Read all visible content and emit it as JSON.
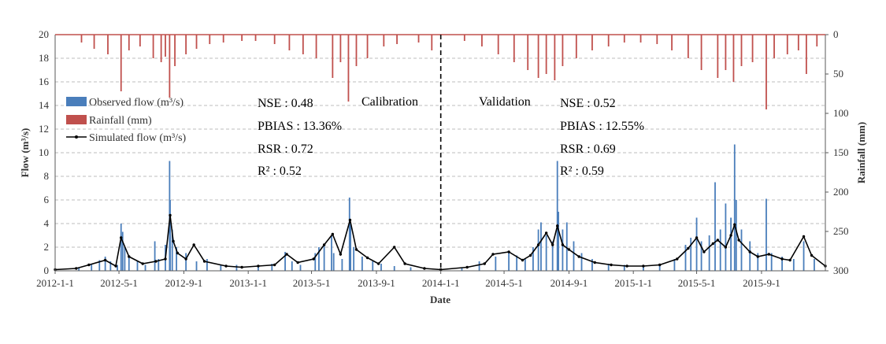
{
  "chart_data": {
    "type": "bar",
    "title": "",
    "xlabel": "Date",
    "ylabel_left": "Flow (m³/s)",
    "ylabel_right": "Rainfall (mm)",
    "ylim_left": [
      0,
      20
    ],
    "ylim_right": [
      0,
      300
    ],
    "right_axis_inverted": true,
    "y_ticks_left": [
      "0",
      "2",
      "4",
      "6",
      "8",
      "10",
      "12",
      "14",
      "16",
      "18",
      "20"
    ],
    "y_ticks_right": [
      "0",
      "50",
      "100",
      "150",
      "200",
      "250",
      "300"
    ],
    "x_ticks": [
      {
        "label": "2012-1-1",
        "date": "2012-01-01"
      },
      {
        "label": "2012-5-1",
        "date": "2012-05-01"
      },
      {
        "label": "2012-9-1",
        "date": "2012-09-01"
      },
      {
        "label": "2013-1-1",
        "date": "2013-01-01"
      },
      {
        "label": "2013-5-1",
        "date": "2013-05-01"
      },
      {
        "label": "2013-9-1",
        "date": "2013-09-01"
      },
      {
        "label": "2014-1-1",
        "date": "2014-01-01"
      },
      {
        "label": "2014-5-1",
        "date": "2014-05-01"
      },
      {
        "label": "2014-9-1",
        "date": "2014-09-01"
      },
      {
        "label": "2015-1-1",
        "date": "2015-01-01"
      },
      {
        "label": "2015-5-1",
        "date": "2015-05-01"
      },
      {
        "label": "2015-9-1",
        "date": "2015-09-01"
      }
    ],
    "x_range": [
      "2012-01-01",
      "2015-12-31"
    ],
    "grid": {
      "horizontal": true,
      "style": "dashed"
    },
    "legend_position": "upper-left",
    "colors": {
      "observed": "#4a7ebb",
      "rainfall": "#c0504d",
      "simulated": "#000000"
    },
    "series": [
      {
        "name": "Observed flow (m³/s)",
        "type": "bar",
        "axis": "left",
        "points": [
          [
            "2012-02-15",
            0.3
          ],
          [
            "2012-03-10",
            0.6
          ],
          [
            "2012-03-25",
            0.9
          ],
          [
            "2012-04-05",
            1.2
          ],
          [
            "2012-04-15",
            0.8
          ],
          [
            "2012-04-28",
            0.5
          ],
          [
            "2012-05-05",
            4.0
          ],
          [
            "2012-05-08",
            3.3
          ],
          [
            "2012-05-12",
            2.0
          ],
          [
            "2012-05-20",
            1.2
          ],
          [
            "2012-06-05",
            0.8
          ],
          [
            "2012-06-20",
            0.5
          ],
          [
            "2012-07-08",
            2.5
          ],
          [
            "2012-07-15",
            1.0
          ],
          [
            "2012-07-28",
            2.2
          ],
          [
            "2012-08-05",
            9.3
          ],
          [
            "2012-08-06",
            6.0
          ],
          [
            "2012-08-10",
            3.5
          ],
          [
            "2012-08-18",
            2.0
          ],
          [
            "2012-09-05",
            1.5
          ],
          [
            "2012-09-25",
            0.8
          ],
          [
            "2012-10-15",
            1.0
          ],
          [
            "2012-11-10",
            0.5
          ],
          [
            "2012-12-10",
            0.5
          ],
          [
            "2013-01-20",
            0.4
          ],
          [
            "2013-02-15",
            0.6
          ],
          [
            "2013-03-12",
            1.6
          ],
          [
            "2013-03-25",
            0.8
          ],
          [
            "2013-04-10",
            0.5
          ],
          [
            "2013-05-08",
            1.5
          ],
          [
            "2013-05-15",
            2.0
          ],
          [
            "2013-05-25",
            2.3
          ],
          [
            "2013-06-08",
            3.0
          ],
          [
            "2013-06-12",
            1.5
          ],
          [
            "2013-06-28",
            1.0
          ],
          [
            "2013-07-12",
            6.2
          ],
          [
            "2013-07-14",
            4.0
          ],
          [
            "2013-07-20",
            2.0
          ],
          [
            "2013-08-05",
            1.2
          ],
          [
            "2013-08-25",
            0.8
          ],
          [
            "2013-09-10",
            0.6
          ],
          [
            "2013-10-05",
            0.4
          ],
          [
            "2013-11-05",
            0.3
          ],
          [
            "2014-02-10",
            0.3
          ],
          [
            "2014-03-15",
            0.8
          ],
          [
            "2014-04-15",
            1.2
          ],
          [
            "2014-05-10",
            1.5
          ],
          [
            "2014-05-25",
            1.3
          ],
          [
            "2014-06-10",
            1.0
          ],
          [
            "2014-06-25",
            2.0
          ],
          [
            "2014-07-05",
            3.5
          ],
          [
            "2014-07-10",
            4.1
          ],
          [
            "2014-07-20",
            3.0
          ],
          [
            "2014-08-01",
            2.5
          ],
          [
            "2014-08-10",
            9.3
          ],
          [
            "2014-08-12",
            5.0
          ],
          [
            "2014-08-20",
            3.5
          ],
          [
            "2014-08-28",
            4.1
          ],
          [
            "2014-09-10",
            2.5
          ],
          [
            "2014-09-25",
            1.5
          ],
          [
            "2014-10-15",
            1.0
          ],
          [
            "2014-11-15",
            0.6
          ],
          [
            "2014-12-15",
            0.5
          ],
          [
            "2015-01-20",
            0.4
          ],
          [
            "2015-02-20",
            0.5
          ],
          [
            "2015-03-20",
            1.0
          ],
          [
            "2015-04-10",
            2.2
          ],
          [
            "2015-04-20",
            2.8
          ],
          [
            "2015-05-01",
            4.5
          ],
          [
            "2015-05-10",
            2.5
          ],
          [
            "2015-05-25",
            3.0
          ],
          [
            "2015-06-05",
            7.5
          ],
          [
            "2015-06-15",
            3.5
          ],
          [
            "2015-06-25",
            5.7
          ],
          [
            "2015-07-05",
            4.5
          ],
          [
            "2015-07-12",
            10.7
          ],
          [
            "2015-07-15",
            6.0
          ],
          [
            "2015-07-25",
            3.5
          ],
          [
            "2015-08-10",
            2.5
          ],
          [
            "2015-08-25",
            1.5
          ],
          [
            "2015-09-10",
            6.1
          ],
          [
            "2015-09-20",
            1.5
          ],
          [
            "2015-10-10",
            1.2
          ],
          [
            "2015-11-01",
            1.0
          ],
          [
            "2015-11-20",
            2.5
          ],
          [
            "2015-12-10",
            1.0
          ]
        ]
      },
      {
        "name": "Rainfall (mm)",
        "type": "bar",
        "axis": "right",
        "inverted": true,
        "points": [
          [
            "2012-02-20",
            10
          ],
          [
            "2012-03-15",
            18
          ],
          [
            "2012-04-10",
            25
          ],
          [
            "2012-05-05",
            72
          ],
          [
            "2012-05-20",
            20
          ],
          [
            "2012-06-10",
            15
          ],
          [
            "2012-07-05",
            30
          ],
          [
            "2012-07-20",
            35
          ],
          [
            "2012-07-28",
            28
          ],
          [
            "2012-08-05",
            80
          ],
          [
            "2012-08-15",
            40
          ],
          [
            "2012-09-05",
            25
          ],
          [
            "2012-09-25",
            18
          ],
          [
            "2012-10-20",
            12
          ],
          [
            "2012-11-15",
            10
          ],
          [
            "2012-12-20",
            8
          ],
          [
            "2013-01-15",
            8
          ],
          [
            "2013-02-20",
            12
          ],
          [
            "2013-03-20",
            20
          ],
          [
            "2013-04-15",
            25
          ],
          [
            "2013-05-10",
            30
          ],
          [
            "2013-06-10",
            55
          ],
          [
            "2013-06-25",
            35
          ],
          [
            "2013-07-10",
            85
          ],
          [
            "2013-07-25",
            40
          ],
          [
            "2013-08-15",
            30
          ],
          [
            "2013-09-15",
            15
          ],
          [
            "2013-10-10",
            12
          ],
          [
            "2013-11-20",
            10
          ],
          [
            "2013-12-15",
            20
          ],
          [
            "2014-02-15",
            8
          ],
          [
            "2014-03-20",
            15
          ],
          [
            "2014-04-20",
            25
          ],
          [
            "2014-05-20",
            35
          ],
          [
            "2014-06-15",
            45
          ],
          [
            "2014-07-05",
            55
          ],
          [
            "2014-07-20",
            50
          ],
          [
            "2014-08-05",
            58
          ],
          [
            "2014-08-20",
            40
          ],
          [
            "2014-09-15",
            30
          ],
          [
            "2014-10-15",
            20
          ],
          [
            "2014-11-15",
            15
          ],
          [
            "2014-12-15",
            10
          ],
          [
            "2015-01-15",
            10
          ],
          [
            "2015-02-15",
            12
          ],
          [
            "2015-03-15",
            20
          ],
          [
            "2015-04-15",
            30
          ],
          [
            "2015-05-10",
            45
          ],
          [
            "2015-06-10",
            55
          ],
          [
            "2015-06-25",
            45
          ],
          [
            "2015-07-10",
            60
          ],
          [
            "2015-07-25",
            40
          ],
          [
            "2015-08-15",
            35
          ],
          [
            "2015-09-10",
            95
          ],
          [
            "2015-09-25",
            30
          ],
          [
            "2015-10-20",
            25
          ],
          [
            "2015-11-10",
            20
          ],
          [
            "2015-11-25",
            50
          ],
          [
            "2015-12-15",
            15
          ]
        ]
      },
      {
        "name": "Simulated flow (m³/s)",
        "type": "line",
        "axis": "left",
        "points": [
          [
            "2012-01-01",
            0.1
          ],
          [
            "2012-02-10",
            0.2
          ],
          [
            "2012-03-05",
            0.5
          ],
          [
            "2012-04-05",
            0.9
          ],
          [
            "2012-04-25",
            0.4
          ],
          [
            "2012-05-05",
            2.8
          ],
          [
            "2012-05-20",
            1.2
          ],
          [
            "2012-06-15",
            0.6
          ],
          [
            "2012-07-10",
            0.8
          ],
          [
            "2012-07-28",
            1.0
          ],
          [
            "2012-08-06",
            4.7
          ],
          [
            "2012-08-12",
            2.5
          ],
          [
            "2012-08-20",
            1.5
          ],
          [
            "2012-09-05",
            1.0
          ],
          [
            "2012-09-20",
            2.2
          ],
          [
            "2012-10-10",
            0.8
          ],
          [
            "2012-11-20",
            0.4
          ],
          [
            "2012-12-20",
            0.3
          ],
          [
            "2013-01-20",
            0.4
          ],
          [
            "2013-02-20",
            0.5
          ],
          [
            "2013-03-15",
            1.4
          ],
          [
            "2013-04-05",
            0.7
          ],
          [
            "2013-05-05",
            1.0
          ],
          [
            "2013-05-25",
            2.2
          ],
          [
            "2013-06-10",
            3.1
          ],
          [
            "2013-06-25",
            1.4
          ],
          [
            "2013-07-13",
            4.3
          ],
          [
            "2013-07-25",
            1.8
          ],
          [
            "2013-08-15",
            1.1
          ],
          [
            "2013-09-05",
            0.6
          ],
          [
            "2013-10-05",
            2.0
          ],
          [
            "2013-10-25",
            0.6
          ],
          [
            "2013-12-01",
            0.2
          ],
          [
            "2014-01-01",
            0.1
          ],
          [
            "2014-02-20",
            0.3
          ],
          [
            "2014-03-25",
            0.6
          ],
          [
            "2014-04-10",
            1.4
          ],
          [
            "2014-05-10",
            1.6
          ],
          [
            "2014-06-05",
            0.9
          ],
          [
            "2014-06-20",
            1.3
          ],
          [
            "2014-07-05",
            2.2
          ],
          [
            "2014-07-20",
            3.2
          ],
          [
            "2014-08-01",
            2.2
          ],
          [
            "2014-08-10",
            3.8
          ],
          [
            "2014-08-20",
            2.2
          ],
          [
            "2014-09-01",
            1.8
          ],
          [
            "2014-09-20",
            1.2
          ],
          [
            "2014-10-20",
            0.7
          ],
          [
            "2014-11-20",
            0.5
          ],
          [
            "2014-12-20",
            0.4
          ],
          [
            "2015-01-20",
            0.4
          ],
          [
            "2015-02-20",
            0.5
          ],
          [
            "2015-03-25",
            1.0
          ],
          [
            "2015-04-15",
            1.9
          ],
          [
            "2015-05-01",
            2.8
          ],
          [
            "2015-05-15",
            1.6
          ],
          [
            "2015-06-01",
            2.3
          ],
          [
            "2015-06-10",
            2.6
          ],
          [
            "2015-06-25",
            2.0
          ],
          [
            "2015-07-05",
            3.0
          ],
          [
            "2015-07-12",
            3.9
          ],
          [
            "2015-07-20",
            2.6
          ],
          [
            "2015-08-10",
            1.6
          ],
          [
            "2015-08-25",
            1.2
          ],
          [
            "2015-09-15",
            1.4
          ],
          [
            "2015-10-10",
            1.0
          ],
          [
            "2015-10-25",
            0.9
          ],
          [
            "2015-11-20",
            2.9
          ],
          [
            "2015-12-05",
            1.3
          ],
          [
            "2015-12-31",
            0.4
          ]
        ]
      }
    ],
    "divider": {
      "date": "2014-01-01",
      "style": "dashed"
    },
    "annotations": {
      "calibration": {
        "period_label": "Calibration",
        "nse": "NSE : 0.48",
        "pbias": "PBIAS : 13.36%",
        "rsr": "RSR : 0.72",
        "r2": "R² : 0.52"
      },
      "validation": {
        "period_label": "Validation",
        "nse": "NSE : 0.52",
        "pbias": "PBIAS : 12.55%",
        "rsr": "RSR : 0.69",
        "r2": "R² : 0.59"
      }
    }
  }
}
